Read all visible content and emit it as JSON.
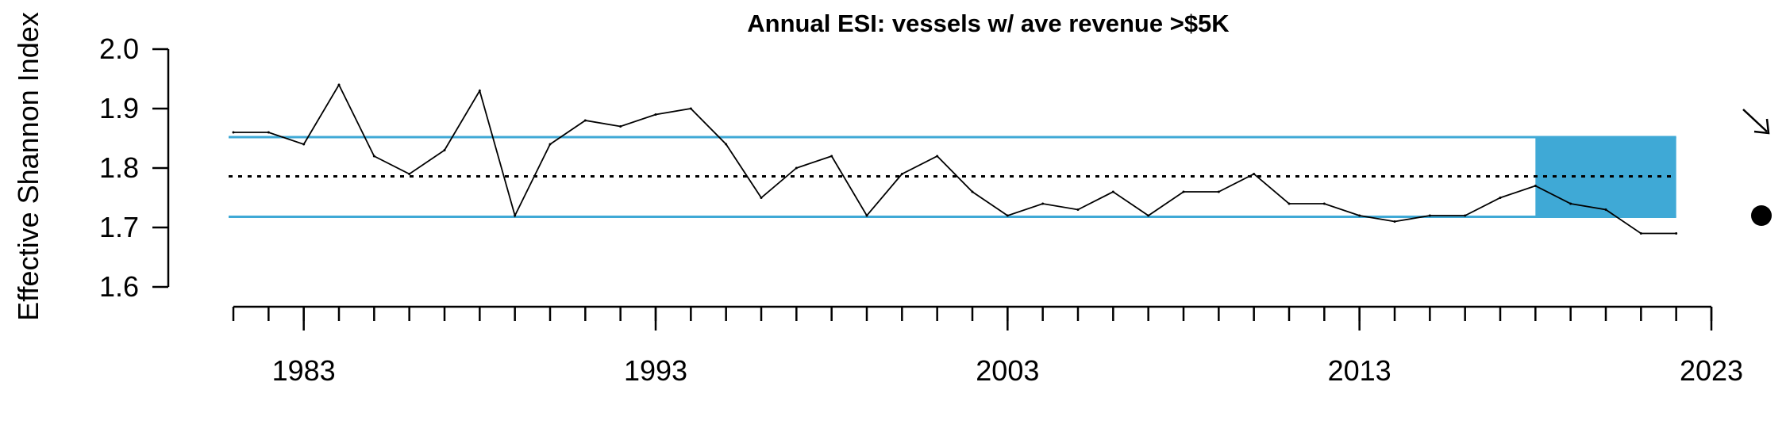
{
  "chart_data": {
    "type": "line",
    "title": "Annual ESI: vessels w/ ave revenue >$5K",
    "xlabel": "",
    "ylabel": "Effective Shannon Index",
    "xlim": [
      1981,
      2023
    ],
    "ylim": [
      1.6,
      2.0
    ],
    "x_ticks": [
      "1983",
      "1993",
      "2003",
      "2013",
      "2023"
    ],
    "y_ticks": [
      "1.6",
      "1.7",
      "1.8",
      "1.9",
      "2.0"
    ],
    "grid": false,
    "series": [
      {
        "x": [
          1981,
          1982,
          1983,
          1984,
          1985,
          1986,
          1987,
          1988,
          1989,
          1990,
          1991,
          1992,
          1993,
          1994,
          1995,
          1996,
          1997,
          1998,
          1999,
          2000,
          2001,
          2002,
          2003,
          2004,
          2005,
          2006,
          2007,
          2008,
          2009,
          2010,
          2011,
          2012,
          2013,
          2014,
          2015,
          2016,
          2017,
          2018,
          2019,
          2020,
          2021,
          2022
        ],
        "values": [
          1.86,
          1.86,
          1.84,
          1.94,
          1.82,
          1.79,
          1.83,
          1.93,
          1.72,
          1.84,
          1.88,
          1.87,
          1.89,
          1.9,
          1.84,
          1.75,
          1.8,
          1.82,
          1.72,
          1.79,
          1.82,
          1.76,
          1.72,
          1.74,
          1.73,
          1.76,
          1.72,
          1.76,
          1.76,
          1.79,
          1.74,
          1.74,
          1.72,
          1.71,
          1.72,
          1.72,
          1.75,
          1.77,
          1.74,
          1.73,
          1.69,
          1.69
        ],
        "color": "#000000"
      }
    ],
    "reference_lines": {
      "mean": 1.786,
      "upper_sd": 1.852,
      "lower_sd": 1.718,
      "mean_style": "dotted",
      "band_color": "#3fa9d6"
    },
    "recent_window": {
      "x_start": 2018,
      "x_end": 2022,
      "color": "#3fa9d6"
    },
    "trend_indicator": {
      "symbol": "arrow-down-right",
      "meaning": "decreasing trend"
    },
    "mean_indicator": {
      "symbol": "filled-circle",
      "meaning": "recent mean within ±1 SD"
    }
  }
}
